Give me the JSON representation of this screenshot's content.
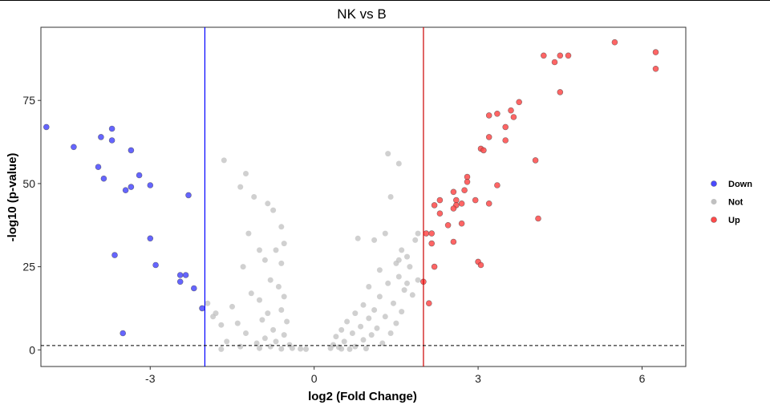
{
  "chart_data": {
    "type": "scatter",
    "title": "NK vs B",
    "xlabel": "log2 (Fold Change)",
    "ylabel": "-log10 (p-value)",
    "xlim": [
      -5.0,
      6.8
    ],
    "ylim": [
      -5,
      97
    ],
    "x_ticks": [
      -3,
      0,
      3,
      6
    ],
    "x_tick_labels": [
      "-3",
      "0",
      "3",
      "6"
    ],
    "y_ticks": [
      0,
      25,
      50,
      75
    ],
    "y_tick_labels": [
      "0",
      "25",
      "50",
      "75"
    ],
    "thresholds": {
      "fold_change_low": -2,
      "fold_change_high": 2,
      "p_value_line": 1.3,
      "low_color": "#0000ff",
      "high_color": "#cc0000"
    },
    "legend": {
      "position": "right",
      "entries": [
        {
          "label": "Down",
          "color": "#4a4aff"
        },
        {
          "label": "Not",
          "color": "#c0c0c0"
        },
        {
          "label": "Up",
          "color": "#ff4a4a"
        }
      ]
    },
    "series": [
      {
        "name": "Down",
        "color": "#4a4aff",
        "points": [
          [
            -4.9,
            67
          ],
          [
            -4.4,
            61
          ],
          [
            -3.9,
            64
          ],
          [
            -3.7,
            66.5
          ],
          [
            -3.7,
            63
          ],
          [
            -3.35,
            60
          ],
          [
            -3.95,
            55
          ],
          [
            -3.85,
            51.5
          ],
          [
            -3.2,
            52.5
          ],
          [
            -3.45,
            48
          ],
          [
            -3.35,
            49
          ],
          [
            -3.0,
            49.5
          ],
          [
            -2.3,
            46.5
          ],
          [
            -3.0,
            33.5
          ],
          [
            -3.65,
            28.5
          ],
          [
            -2.9,
            25.5
          ],
          [
            -2.45,
            22.5
          ],
          [
            -2.45,
            20.5
          ],
          [
            -2.35,
            22.5
          ],
          [
            -2.2,
            18.5
          ],
          [
            -2.05,
            12.5
          ],
          [
            -3.5,
            5
          ]
        ]
      },
      {
        "name": "Not",
        "color": "#c0c0c0",
        "points": [
          [
            -1.65,
            57
          ],
          [
            -1.25,
            53
          ],
          [
            -1.35,
            49
          ],
          [
            -1.1,
            46
          ],
          [
            -0.85,
            44
          ],
          [
            -0.75,
            42
          ],
          [
            -0.6,
            37
          ],
          [
            -1.2,
            35
          ],
          [
            -0.55,
            32
          ],
          [
            -0.7,
            30
          ],
          [
            -1.0,
            30
          ],
          [
            -0.9,
            27
          ],
          [
            -0.6,
            26
          ],
          [
            -1.3,
            25
          ],
          [
            -0.8,
            21
          ],
          [
            -0.65,
            19
          ],
          [
            -1.15,
            17
          ],
          [
            -0.55,
            16
          ],
          [
            -1.0,
            15
          ],
          [
            -1.5,
            13
          ],
          [
            -0.6,
            12
          ],
          [
            -0.85,
            11
          ],
          [
            -1.8,
            11
          ],
          [
            -0.95,
            9
          ],
          [
            -0.5,
            8.5
          ],
          [
            -1.4,
            8
          ],
          [
            -1.7,
            7.5
          ],
          [
            -0.75,
            6
          ],
          [
            -1.25,
            5
          ],
          [
            -0.55,
            4.5
          ],
          [
            -0.9,
            3.5
          ],
          [
            -1.6,
            2.5
          ],
          [
            -0.7,
            2.5
          ],
          [
            -1.05,
            2
          ],
          [
            -0.45,
            1.5
          ],
          [
            -1.35,
            1
          ],
          [
            -0.8,
            1
          ],
          [
            -0.4,
            0.5
          ],
          [
            -0.25,
            0.3
          ],
          [
            -0.15,
            0.2
          ],
          [
            -0.6,
            0.3
          ],
          [
            -1.7,
            0.2
          ],
          [
            -1.0,
            0.5
          ],
          [
            -1.95,
            14
          ],
          [
            -1.85,
            10
          ],
          [
            1.35,
            59
          ],
          [
            1.55,
            56
          ],
          [
            1.4,
            46
          ],
          [
            0.8,
            33.5
          ],
          [
            1.3,
            35
          ],
          [
            1.1,
            33
          ],
          [
            1.6,
            30
          ],
          [
            1.85,
            33
          ],
          [
            1.9,
            35
          ],
          [
            1.7,
            28
          ],
          [
            1.5,
            26
          ],
          [
            1.75,
            25
          ],
          [
            1.2,
            24
          ],
          [
            1.55,
            22
          ],
          [
            1.35,
            20
          ],
          [
            1.0,
            19
          ],
          [
            1.65,
            18
          ],
          [
            1.8,
            16.5
          ],
          [
            1.2,
            16
          ],
          [
            1.45,
            14
          ],
          [
            0.9,
            13.5
          ],
          [
            1.1,
            12
          ],
          [
            1.6,
            11.5
          ],
          [
            0.75,
            11
          ],
          [
            1.3,
            10
          ],
          [
            1.0,
            9.5
          ],
          [
            0.6,
            8.5
          ],
          [
            1.5,
            8
          ],
          [
            0.85,
            7
          ],
          [
            1.15,
            6.5
          ],
          [
            0.5,
            6
          ],
          [
            0.7,
            5
          ],
          [
            1.05,
            4.5
          ],
          [
            0.4,
            4
          ],
          [
            0.9,
            3
          ],
          [
            0.55,
            2.5
          ],
          [
            1.25,
            2
          ],
          [
            0.35,
            1.5
          ],
          [
            0.75,
            1
          ],
          [
            0.3,
            0.5
          ],
          [
            0.5,
            0.3
          ],
          [
            0.65,
            0.2
          ],
          [
            0.95,
            0.4
          ],
          [
            0.45,
            0.8
          ],
          [
            1.4,
            5
          ],
          [
            1.7,
            20
          ],
          [
            1.9,
            21
          ],
          [
            1.55,
            27
          ]
        ]
      },
      {
        "name": "Up",
        "color": "#ff4a4a",
        "points": [
          [
            5.5,
            92.5
          ],
          [
            6.25,
            89.5
          ],
          [
            6.25,
            84.5
          ],
          [
            4.2,
            88.5
          ],
          [
            4.5,
            88.5
          ],
          [
            4.65,
            88.5
          ],
          [
            4.4,
            86.5
          ],
          [
            4.5,
            77.5
          ],
          [
            3.75,
            74.5
          ],
          [
            3.6,
            72
          ],
          [
            3.35,
            71
          ],
          [
            3.2,
            70.5
          ],
          [
            3.65,
            70
          ],
          [
            3.5,
            67
          ],
          [
            3.2,
            64
          ],
          [
            3.5,
            63
          ],
          [
            3.05,
            60.5
          ],
          [
            3.1,
            60
          ],
          [
            4.05,
            57
          ],
          [
            2.8,
            52
          ],
          [
            2.8,
            50.5
          ],
          [
            2.75,
            48
          ],
          [
            2.55,
            47.5
          ],
          [
            3.35,
            49.5
          ],
          [
            2.6,
            45
          ],
          [
            2.3,
            45
          ],
          [
            2.95,
            45
          ],
          [
            2.7,
            44
          ],
          [
            3.2,
            44
          ],
          [
            2.6,
            43.5
          ],
          [
            2.2,
            43.5
          ],
          [
            2.55,
            42.5
          ],
          [
            2.3,
            41
          ],
          [
            2.7,
            38
          ],
          [
            4.1,
            39.5
          ],
          [
            2.45,
            37.5
          ],
          [
            2.05,
            35
          ],
          [
            2.15,
            35
          ],
          [
            2.15,
            32
          ],
          [
            2.55,
            32.5
          ],
          [
            3.0,
            26.5
          ],
          [
            3.05,
            25.5
          ],
          [
            2.2,
            25
          ],
          [
            2.0,
            20.5
          ],
          [
            2.1,
            14
          ]
        ]
      }
    ]
  }
}
